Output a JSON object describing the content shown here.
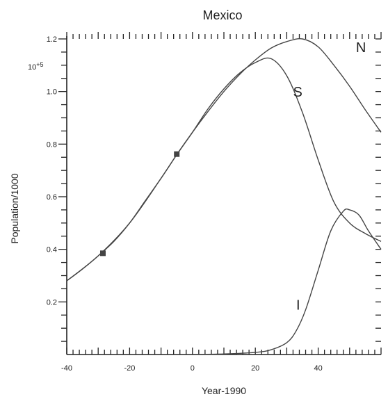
{
  "chart_data": {
    "type": "line",
    "title": "Mexico",
    "xlabel": "Year-1990",
    "ylabel": "Population/1000",
    "y_multiplier": "10^5",
    "xlim": [
      -40,
      60
    ],
    "ylim": [
      0.0,
      1.2
    ],
    "x_tick_labels": [
      "-40",
      "-20",
      "0",
      "20",
      "40"
    ],
    "y_tick_labels": [
      "0.2",
      "0.4",
      "0.6",
      "0.8",
      "1.0",
      "1.2"
    ],
    "series": [
      {
        "name": "N",
        "x": [
          -40,
          -35,
          -30,
          -25,
          -20,
          -15,
          -10,
          -5,
          0,
          5,
          10,
          15,
          20,
          25,
          30,
          35,
          40,
          45,
          50,
          55,
          60
        ],
        "values": [
          0.28,
          0.325,
          0.375,
          0.43,
          0.5,
          0.585,
          0.67,
          0.76,
          0.845,
          0.925,
          1.0,
          1.065,
          1.12,
          1.165,
          1.19,
          1.2,
          1.17,
          1.1,
          1.02,
          0.93,
          0.845
        ]
      },
      {
        "name": "S",
        "x": [
          -40,
          -30,
          -20,
          -10,
          -5,
          0,
          5,
          10,
          15,
          20,
          25,
          30,
          35,
          40,
          45,
          50,
          55,
          60
        ],
        "values": [
          0.28,
          0.375,
          0.5,
          0.67,
          0.76,
          0.845,
          0.935,
          1.01,
          1.07,
          1.11,
          1.125,
          1.06,
          0.92,
          0.74,
          0.58,
          0.5,
          0.46,
          0.43
        ]
      },
      {
        "name": "I",
        "x": [
          0,
          10,
          20,
          25,
          30,
          33,
          36,
          40,
          44,
          48,
          50,
          53,
          56,
          60
        ],
        "values": [
          0.0,
          0.002,
          0.008,
          0.018,
          0.045,
          0.09,
          0.17,
          0.32,
          0.47,
          0.545,
          0.55,
          0.53,
          0.47,
          0.4
        ]
      }
    ],
    "markers": {
      "x": [
        -28.5,
        -5
      ],
      "values": [
        0.385,
        0.762
      ]
    }
  }
}
